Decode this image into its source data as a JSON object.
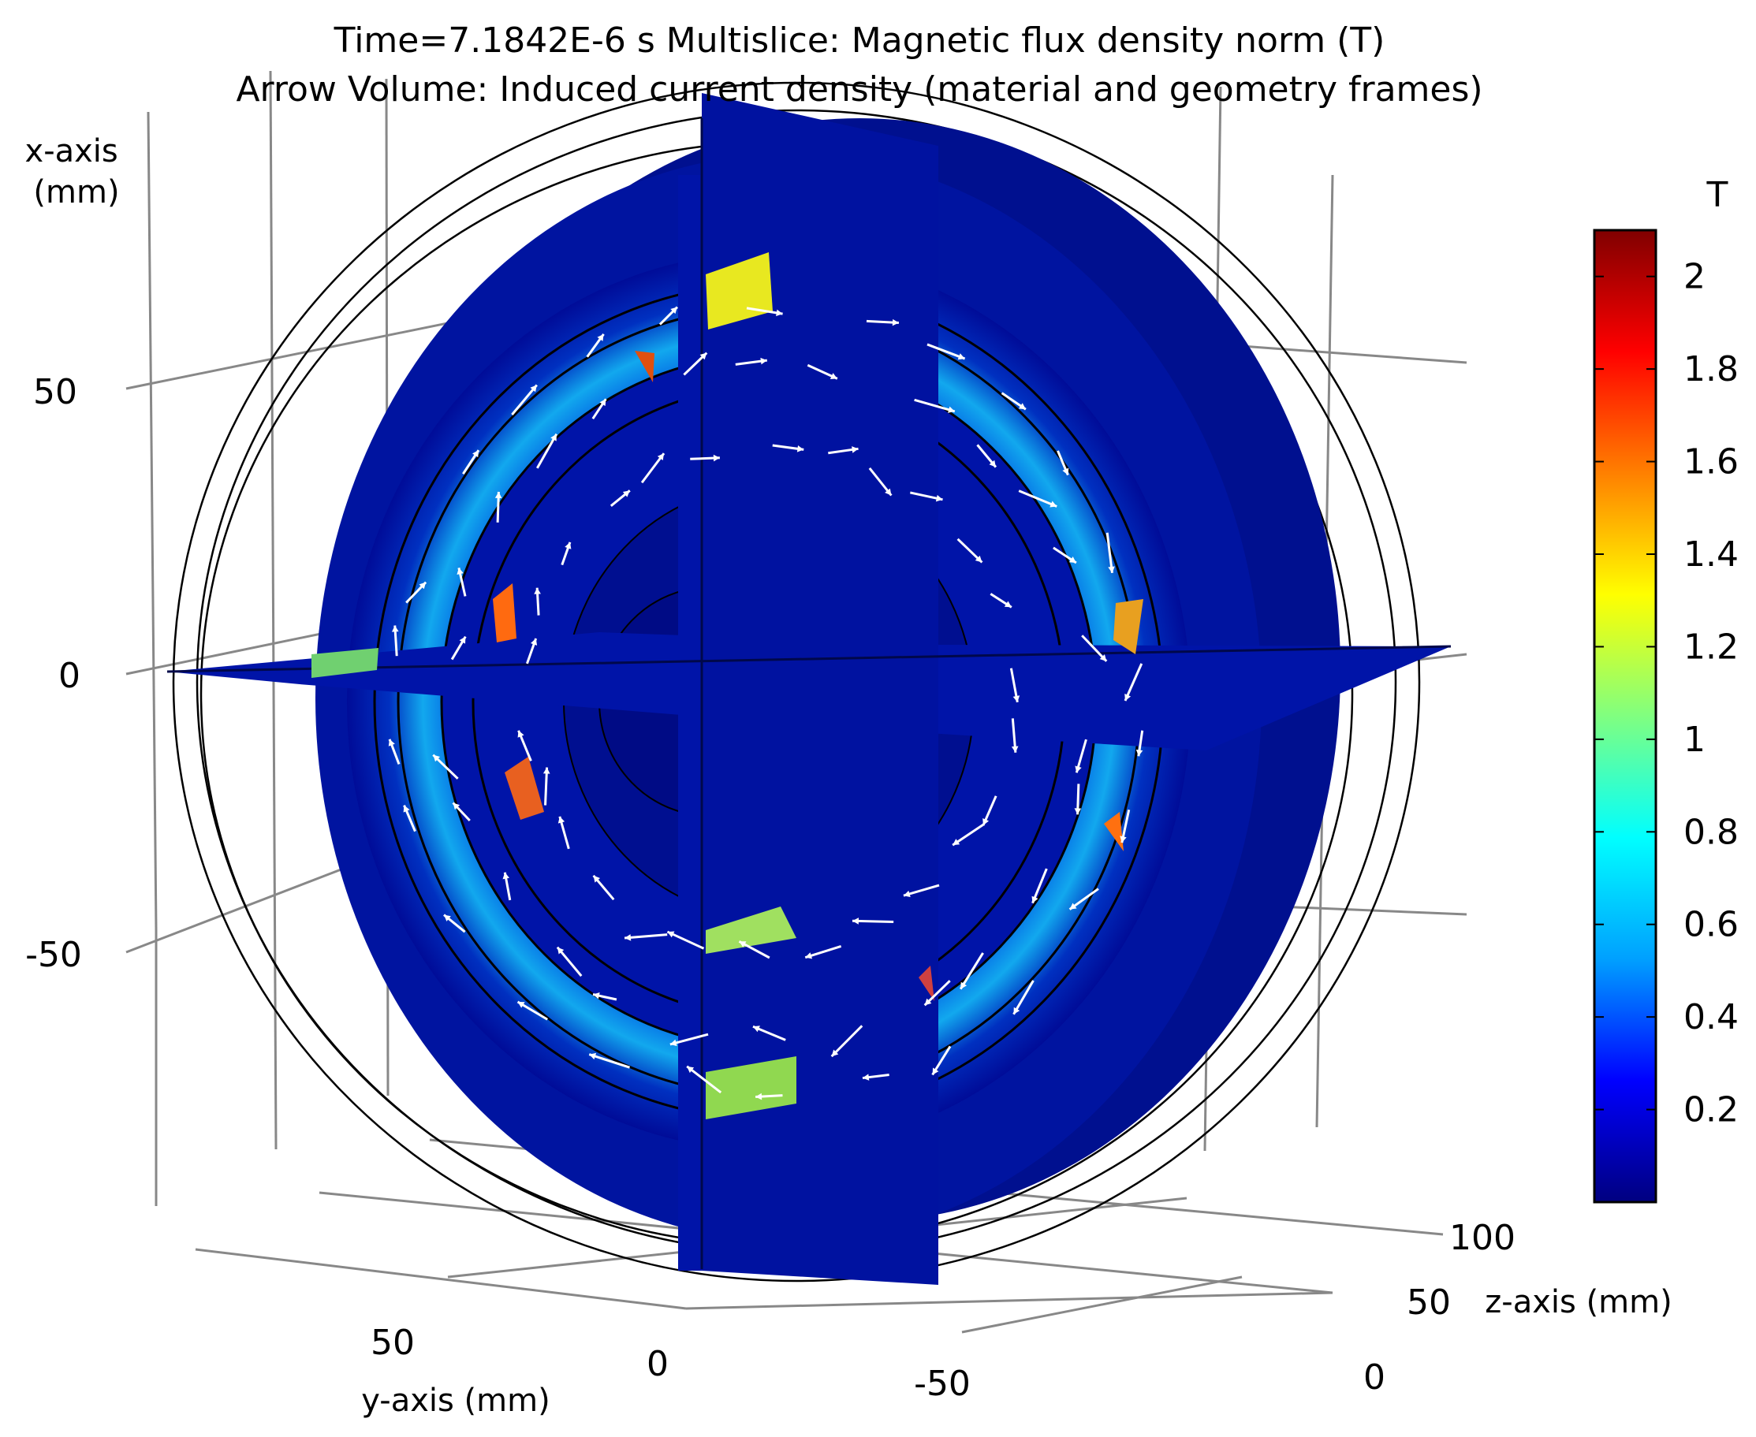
{
  "title": {
    "line1": "Time=7.1842E-6 s   Multislice: Magnetic flux density norm (T)",
    "line2": "Arrow Volume: Induced current density (material and geometry frames)"
  },
  "chart_data": {
    "type": "heatmap",
    "plot": "3D multislice of a cylindrical electric machine",
    "quantity": "Magnetic flux density norm (T)",
    "overlay": "Arrow Volume: Induced current density (material and geometry frames)",
    "time": "7.1842E-6 s",
    "axes": {
      "x": {
        "label": "x-axis\n(mm)",
        "ticks": [
          "50",
          "0",
          "-50"
        ]
      },
      "y": {
        "label": "y-axis (mm)",
        "ticks": [
          "50",
          "0",
          "-50"
        ]
      },
      "z": {
        "label": "z-axis (mm)",
        "ticks": [
          "100",
          "50",
          "0"
        ]
      }
    },
    "colorbar": {
      "unit": "T",
      "ticks": [
        "2",
        "1.8",
        "1.6",
        "1.4",
        "1.2",
        "1",
        "0.8",
        "0.6",
        "0.4",
        "0.2"
      ],
      "tick_values": [
        2,
        1.8,
        1.6,
        1.4,
        1.2,
        1,
        0.8,
        0.6,
        0.4,
        0.2
      ],
      "range": [
        0.0,
        2.1
      ],
      "colormap": "rainbow",
      "colors": [
        "#000080",
        "#0000ff",
        "#00a0ff",
        "#00ffff",
        "#80ff80",
        "#ffff00",
        "#ff8000",
        "#ff0000",
        "#800000"
      ]
    }
  }
}
